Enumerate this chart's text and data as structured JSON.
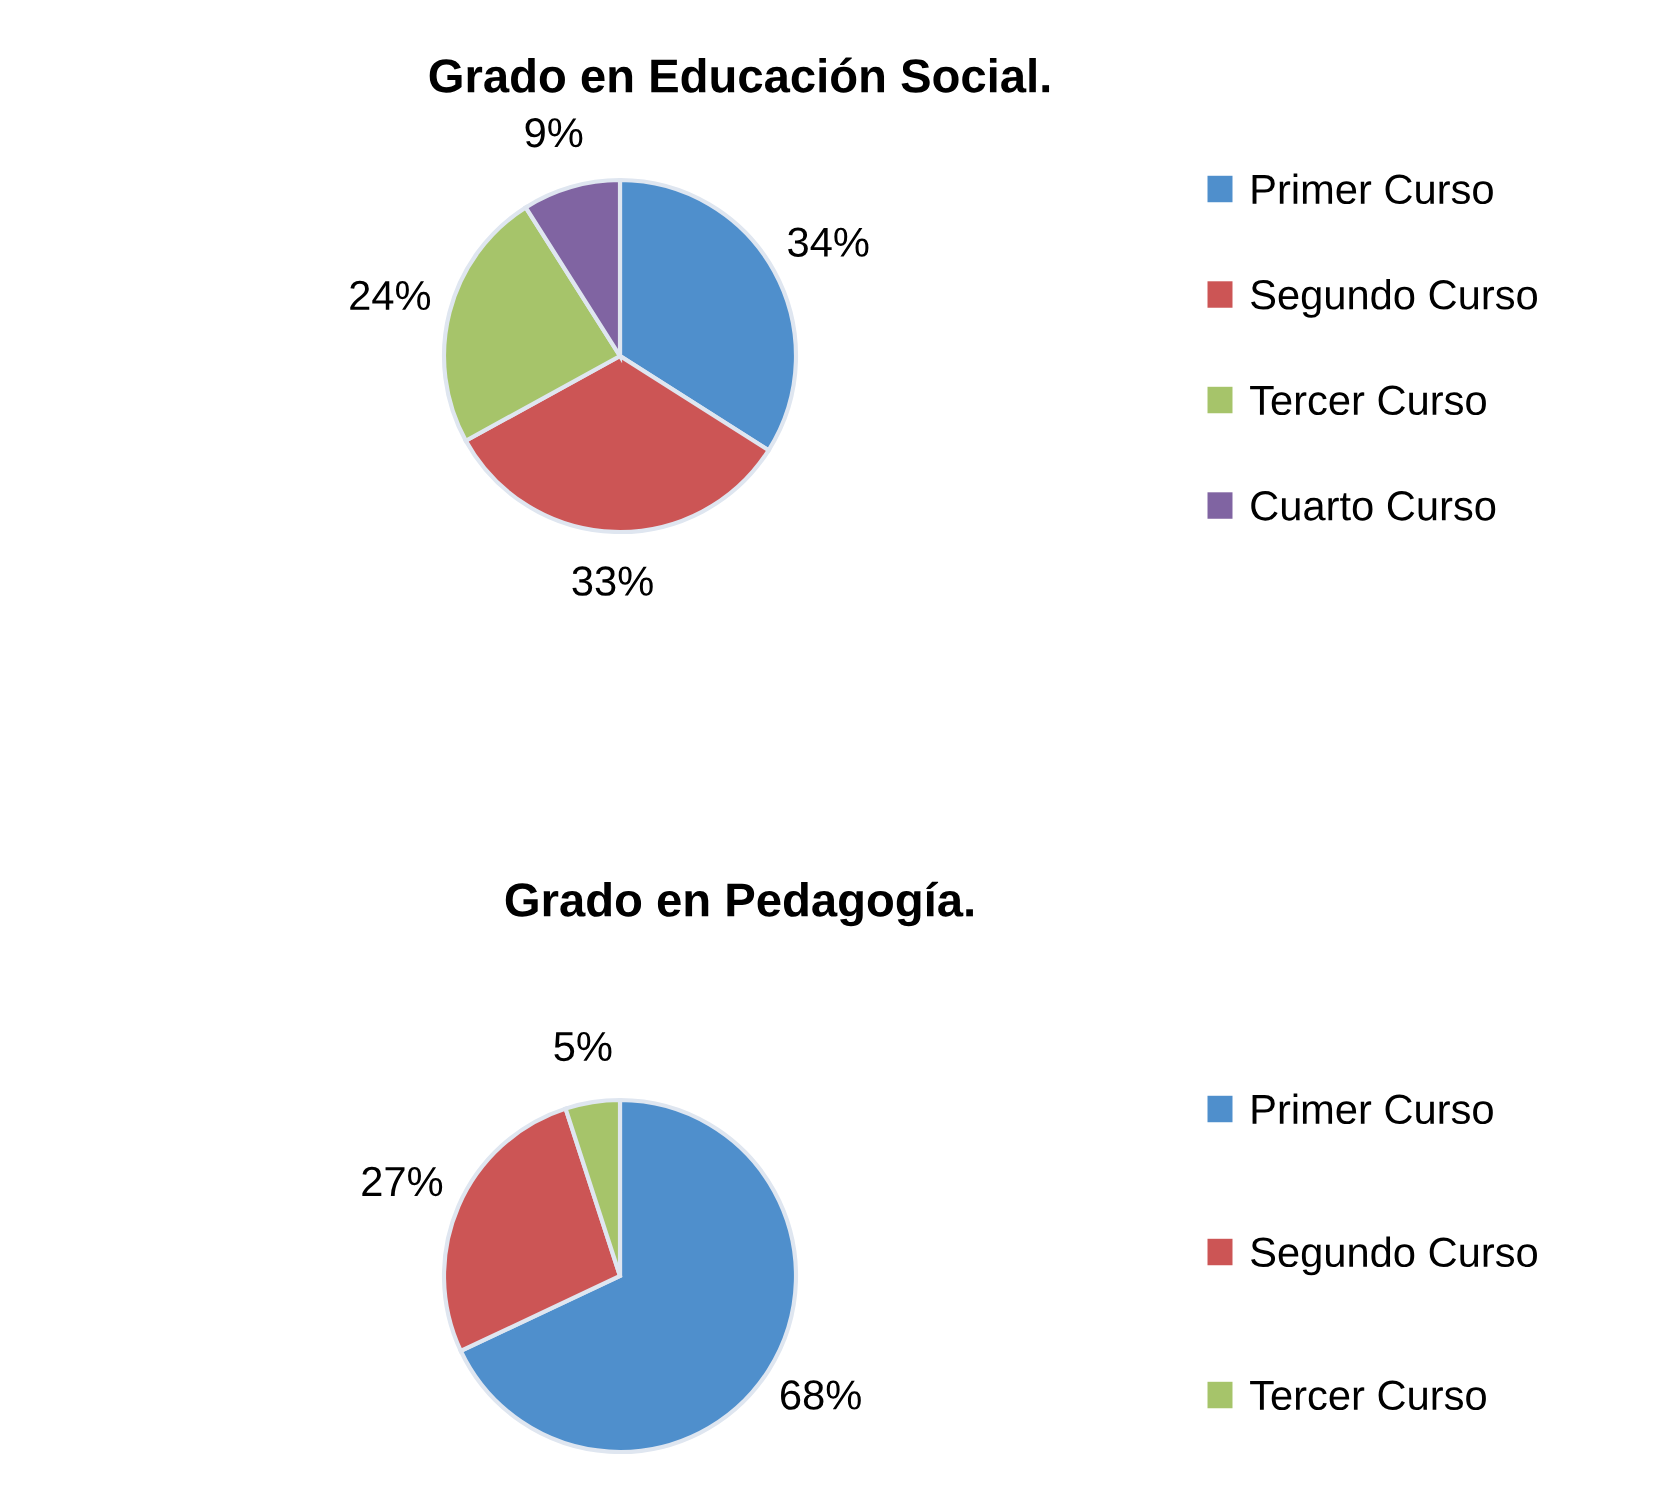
{
  "chart_data": [
    {
      "type": "pie",
      "title": "Grado en Educación Social.",
      "categories": [
        "Primer Curso",
        "Segundo Curso",
        "Tercer Curso",
        "Cuarto Curso"
      ],
      "values": [
        34,
        33,
        24,
        9
      ],
      "colors": [
        "#4f8fcc",
        "#cc5555",
        "#a6c46a",
        "#8064a2"
      ],
      "value_labels": [
        "34%",
        "33%",
        "24%",
        "9%"
      ],
      "legend": "right"
    },
    {
      "type": "pie",
      "title": "Grado en Pedagogía.",
      "categories": [
        "Primer Curso",
        "Segundo Curso",
        "Tercer Curso"
      ],
      "values": [
        68,
        27,
        5
      ],
      "colors": [
        "#4f8fcc",
        "#cc5555",
        "#a6c46a"
      ],
      "value_labels": [
        "68%",
        "27%",
        "5%"
      ],
      "legend": "right"
    }
  ]
}
